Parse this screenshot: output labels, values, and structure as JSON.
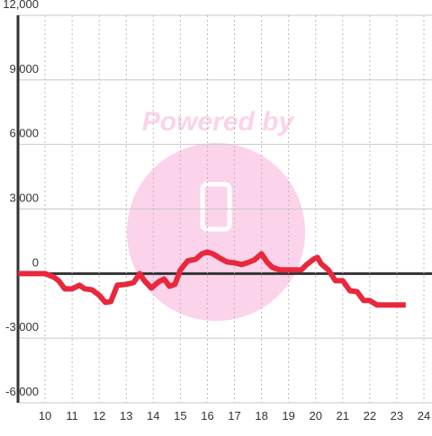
{
  "chart_data": {
    "type": "line",
    "watermark": "Powered by",
    "x": [
      9,
      10,
      10.33,
      10.5,
      10.73,
      11,
      11.27,
      11.47,
      11.73,
      12,
      12.23,
      12.43,
      12.67,
      13,
      13.27,
      13.5,
      13.67,
      13.93,
      14.2,
      14.4,
      14.6,
      14.8,
      15,
      15.27,
      15.57,
      15.8,
      16,
      16.2,
      16.47,
      16.73,
      17,
      17.27,
      17.47,
      17.73,
      18,
      18.2,
      18.4,
      18.67,
      18.93,
      19.2,
      19.47,
      19.67,
      19.93,
      20.07,
      20.2,
      20.47,
      20.73,
      21,
      21.27,
      21.53,
      21.77,
      22,
      22.27,
      22.47,
      23.33
    ],
    "series": [
      {
        "color": "#e8283c",
        "values": [
          0,
          0,
          -170,
          -330,
          -710,
          -710,
          -540,
          -710,
          -750,
          -1000,
          -1340,
          -1300,
          -540,
          -500,
          -420,
          0,
          -330,
          -670,
          -380,
          -250,
          -590,
          -500,
          170,
          590,
          670,
          920,
          1000,
          920,
          710,
          540,
          500,
          420,
          500,
          630,
          920,
          540,
          290,
          170,
          170,
          170,
          170,
          420,
          670,
          750,
          460,
          170,
          -330,
          -330,
          -800,
          -840,
          -1250,
          -1250,
          -1460,
          -1460,
          -1460
        ]
      }
    ],
    "xlim": [
      9,
      24.3
    ],
    "xticks": [
      10,
      11,
      12,
      13,
      14,
      15,
      16,
      17,
      18,
      19,
      20,
      21,
      22,
      23,
      24
    ],
    "ylim": [
      -6000,
      12000
    ],
    "yticks": [
      {
        "value": -6000,
        "label": "-6,000"
      },
      {
        "value": -3000,
        "label": "-3,000"
      },
      0,
      {
        "value": 3000,
        "label": "3,000"
      },
      {
        "value": 6000,
        "label": "6,000"
      },
      {
        "value": 9000,
        "label": "9,000"
      },
      {
        "value": 12000,
        "label": "12,000"
      }
    ],
    "grid": true
  }
}
